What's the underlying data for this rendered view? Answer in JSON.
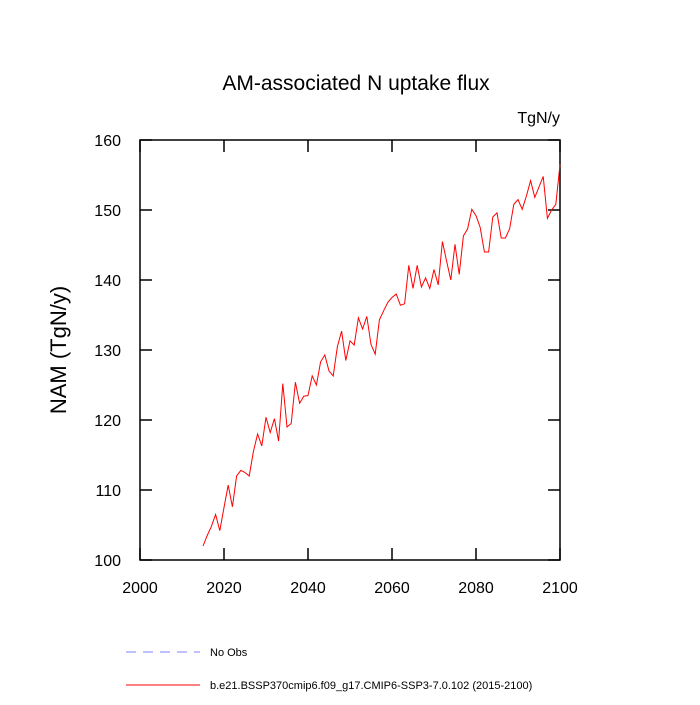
{
  "chart_data": {
    "type": "line",
    "title": "AM-associated N uptake flux",
    "subtitle": "TgN/y",
    "y_label": "NAM  (TgN/y)",
    "x": [
      2015,
      2016,
      2017,
      2018,
      2019,
      2020,
      2021,
      2022,
      2023,
      2024,
      2025,
      2026,
      2027,
      2028,
      2029,
      2030,
      2031,
      2032,
      2033,
      2034,
      2035,
      2036,
      2037,
      2038,
      2039,
      2040,
      2041,
      2042,
      2043,
      2044,
      2045,
      2046,
      2047,
      2048,
      2049,
      2050,
      2051,
      2052,
      2053,
      2054,
      2055,
      2056,
      2057,
      2058,
      2059,
      2060,
      2061,
      2062,
      2063,
      2064,
      2065,
      2066,
      2067,
      2068,
      2069,
      2070,
      2071,
      2072,
      2073,
      2074,
      2075,
      2076,
      2077,
      2078,
      2079,
      2080,
      2081,
      2082,
      2083,
      2084,
      2085,
      2086,
      2087,
      2088,
      2089,
      2090,
      2091,
      2092,
      2093,
      2094,
      2095,
      2096,
      2097,
      2098,
      2099,
      2100
    ],
    "series": [
      {
        "name": "b.e21.BSSP370cmip6.f09_g17.CMIP6-SSP3-7.0.102 (2015-2100)",
        "color": "#ff0000",
        "values": [
          102,
          103.5,
          104.8,
          106.5,
          104.2,
          107.5,
          110.7,
          107.6,
          112,
          112.8,
          112.5,
          112,
          115.5,
          118,
          116.3,
          120.4,
          118.2,
          120.2,
          117,
          125.2,
          119,
          119.5,
          125.4,
          122.4,
          123.4,
          123.5,
          126.3,
          125,
          128.3,
          129.3,
          127,
          126.3,
          130.5,
          132.7,
          128.5,
          131.3,
          130.7,
          134.6,
          133,
          134.8,
          130.8,
          129.4,
          134.3,
          135.6,
          136.8,
          137.5,
          138,
          136.4,
          136.6,
          142.1,
          138.8,
          142.1,
          139,
          140.3,
          138.8,
          141.5,
          139.3,
          145.5,
          142.7,
          140,
          145.1,
          140.8,
          146.3,
          147.3,
          150.1,
          149.2,
          147.5,
          144,
          144,
          149,
          149.6,
          146,
          146,
          147.3,
          150.8,
          151.5,
          150.1,
          152,
          154.2,
          151.8,
          153.3,
          154.8,
          148.8,
          150,
          150.8,
          156.5
        ]
      }
    ],
    "legend_extra": [
      {
        "name": "No Obs",
        "color": "#8080ff",
        "dashed": true
      }
    ],
    "xlim": [
      2000,
      2100
    ],
    "xticks": [
      2000,
      2020,
      2040,
      2060,
      2080,
      2100
    ],
    "ylim": [
      100,
      160
    ],
    "yticks": [
      100,
      110,
      120,
      130,
      140,
      150,
      160
    ]
  }
}
